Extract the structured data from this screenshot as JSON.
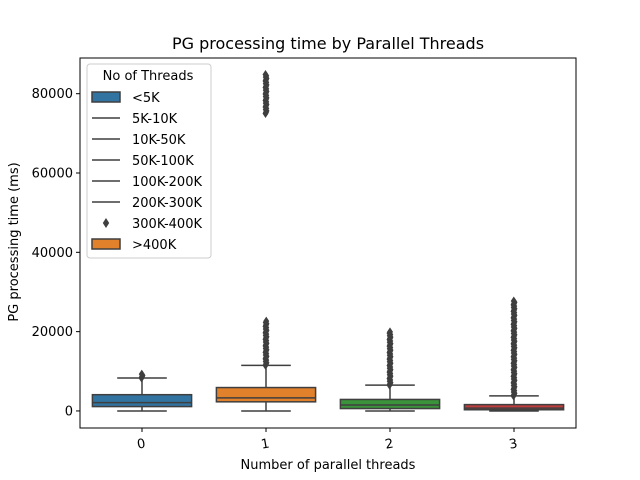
{
  "chart_data": {
    "type": "box",
    "title": "PG processing time by Parallel Threads",
    "xlabel": "Number of parallel threads",
    "ylabel": "PG processing time (ms)",
    "ylim": [
      -4300,
      89000
    ],
    "yticks": [
      0,
      20000,
      40000,
      60000,
      80000
    ],
    "ytick_labels": [
      "0",
      "20000",
      "40000",
      "60000",
      "80000"
    ],
    "grid": false,
    "legend_position": "top-left",
    "legend": {
      "title": "No of Threads",
      "entries": [
        {
          "label": "<5K",
          "marker": "patch",
          "color": "#3274a1"
        },
        {
          "label": "5K-10K",
          "marker": "line",
          "color": "#3f3f3f"
        },
        {
          "label": "10K-50K",
          "marker": "line",
          "color": "#3f3f3f"
        },
        {
          "label": "50K-100K",
          "marker": "line",
          "color": "#3f3f3f"
        },
        {
          "label": "100K-200K",
          "marker": "line",
          "color": "#3f3f3f"
        },
        {
          "label": "200K-300K",
          "marker": "line",
          "color": "#3f3f3f"
        },
        {
          "label": "300K-400K",
          "marker": "diamond",
          "color": "#3f3f3f"
        },
        {
          "label": ">400K",
          "marker": "patch",
          "color": "#e1812c"
        }
      ]
    },
    "categories": [
      "0",
      "1",
      "2",
      "3"
    ],
    "boxes": [
      {
        "category": "0",
        "color": "#3274a1",
        "whislo": 0,
        "q1": 1100,
        "median": 2100,
        "q3": 4100,
        "whishi": 8300,
        "outlier_range": [
          8300,
          9400
        ]
      },
      {
        "category": "1",
        "color": "#e1812c",
        "whislo": 0,
        "q1": 2300,
        "median": 3300,
        "q3": 5900,
        "whishi": 11500,
        "outlier_range": [
          11500,
          22800
        ],
        "outlier_range_2": [
          75000,
          85000
        ]
      },
      {
        "category": "2",
        "color": "#3a923a",
        "whislo": 0,
        "q1": 600,
        "median": 1500,
        "q3": 2900,
        "whishi": 6500,
        "outlier_range": [
          6500,
          20200
        ]
      },
      {
        "category": "3",
        "color": "#c03d3e",
        "whislo": 0,
        "q1": 300,
        "median": 700,
        "q3": 1600,
        "whishi": 3800,
        "outlier_range": [
          3800,
          28000
        ]
      }
    ]
  },
  "colors": {
    "edge": "#3f3f3f",
    "axis": "#000000"
  }
}
